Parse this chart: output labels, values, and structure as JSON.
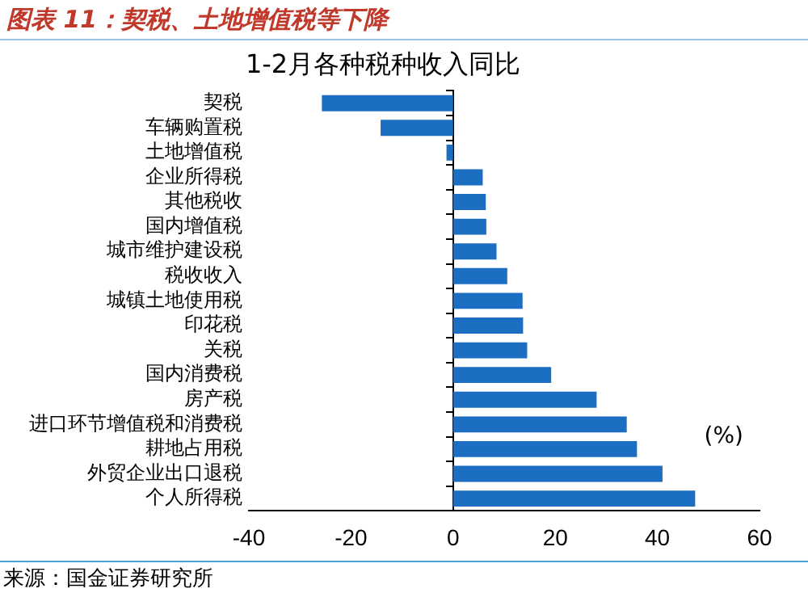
{
  "chart_data": {
    "type": "bar",
    "orientation": "horizontal",
    "title": "图表 11：契税、土地增值税等下降",
    "subtitle": "1-2月各种税种收入同比",
    "categories": [
      "契税",
      "车辆购置税",
      "土地增值税",
      "企业所得税",
      "其他税收",
      "国内增值税",
      "城市维护建设税",
      "税收收入",
      "城镇土地使用税",
      "印花税",
      "关税",
      "国内消费税",
      "房产税",
      "进口环节增值税和消费税",
      "耕地占用税",
      "外贸企业出口退税",
      "个人所得税"
    ],
    "values": [
      -25.7,
      -14.2,
      -1.3,
      5.8,
      6.4,
      6.5,
      8.5,
      10.6,
      13.6,
      13.7,
      14.5,
      19.2,
      28.1,
      34.0,
      36.0,
      41.0,
      47.4
    ],
    "color": "#1b6ec2",
    "xlim": [
      -40,
      60
    ],
    "xticks": [
      -40,
      -20,
      0,
      20,
      40,
      60
    ],
    "grid": false,
    "ref_lines": [
      {
        "axis": "x",
        "value": 0,
        "color": "#000000"
      }
    ],
    "legend": false,
    "annotations": [
      "(%)",
      "来源：国金证券研究所"
    ]
  }
}
